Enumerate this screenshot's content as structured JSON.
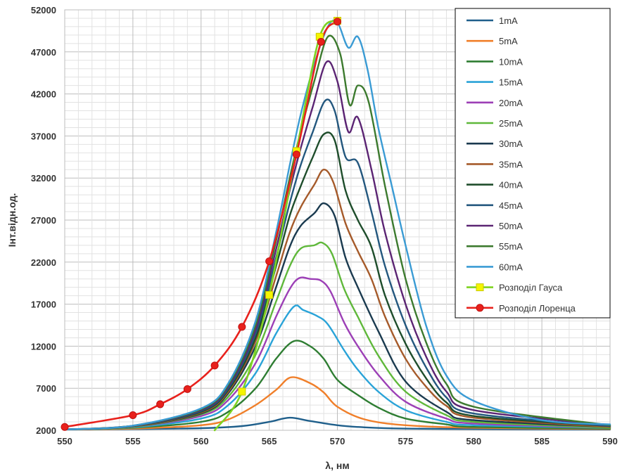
{
  "chart_data": {
    "type": "line",
    "title": "",
    "xlabel": "λ, нм",
    "ylabel": "Інт.відн.од.",
    "xlim": [
      550,
      590
    ],
    "ylim": [
      2000,
      52000
    ],
    "xticks": [
      "550",
      "555",
      "560",
      "565",
      "570",
      "575",
      "580",
      "585",
      "590"
    ],
    "yticks": [
      "2000",
      "7000",
      "12000",
      "17000",
      "22000",
      "27000",
      "32000",
      "37000",
      "42000",
      "47000",
      "52000"
    ],
    "grid": true,
    "legend_position": "top-right",
    "series": [
      {
        "name": "1mA",
        "color": "#1f5f8b",
        "marker": "none",
        "x": [
          550,
          555,
          560,
          563,
          565,
          566.5,
          568,
          570,
          572,
          575,
          580,
          590
        ],
        "y": [
          2100,
          2150,
          2250,
          2500,
          3000,
          3500,
          3100,
          2600,
          2350,
          2200,
          2150,
          2100
        ]
      },
      {
        "name": "5mA",
        "color": "#f07f2a",
        "marker": "none",
        "x": [
          550,
          555,
          560,
          562,
          564,
          565.5,
          566.6,
          568,
          569,
          570,
          572,
          575,
          580,
          590
        ],
        "y": [
          2100,
          2200,
          2600,
          3300,
          5000,
          6800,
          8300,
          7600,
          6500,
          4800,
          3300,
          2600,
          2300,
          2150
        ]
      },
      {
        "name": "10mA",
        "color": "#2e7d32",
        "marker": "none",
        "x": [
          550,
          555,
          560,
          562,
          564,
          565.5,
          566.8,
          568,
          569,
          570,
          571.5,
          573,
          575,
          578,
          580,
          590
        ],
        "y": [
          2100,
          2300,
          3000,
          4200,
          7000,
          10500,
          12600,
          12000,
          10500,
          8000,
          6200,
          4700,
          3400,
          2700,
          2400,
          2200
        ]
      },
      {
        "name": "15mA",
        "color": "#29a3d8",
        "marker": "none",
        "x": [
          550,
          555,
          560,
          562,
          564,
          565.5,
          566.8,
          567.5,
          568.5,
          569.3,
          570.5,
          571.5,
          573,
          575,
          578,
          580,
          590
        ],
        "y": [
          2100,
          2350,
          3400,
          5000,
          8800,
          13500,
          16700,
          16300,
          15600,
          14600,
          11500,
          9200,
          6600,
          4400,
          3000,
          2600,
          2300
        ]
      },
      {
        "name": "20mA",
        "color": "#9c3fb6",
        "marker": "none",
        "x": [
          550,
          555,
          560,
          562,
          564,
          565.5,
          566.5,
          567.2,
          568,
          568.8,
          569.5,
          570.5,
          571.5,
          573,
          575,
          578,
          580,
          590
        ],
        "y": [
          2100,
          2400,
          3700,
          5600,
          10000,
          15500,
          18800,
          20100,
          20000,
          19800,
          18500,
          14800,
          12000,
          8600,
          5400,
          3400,
          2800,
          2300
        ]
      },
      {
        "name": "25mA",
        "color": "#5fb83a",
        "marker": "none",
        "x": [
          550,
          555,
          560,
          562,
          564,
          565.5,
          566.5,
          567.3,
          568.3,
          568.9,
          569.6,
          570.5,
          571.5,
          573,
          575,
          578,
          580,
          590
        ],
        "y": [
          2100,
          2400,
          3900,
          6000,
          11000,
          17300,
          21500,
          23600,
          24000,
          24300,
          23000,
          18800,
          15500,
          10900,
          6600,
          3800,
          3000,
          2300
        ]
      },
      {
        "name": "30mA",
        "color": "#1a3a4f",
        "marker": "none",
        "x": [
          550,
          555,
          560,
          562,
          564,
          565.5,
          566.5,
          567.3,
          568.3,
          569,
          569.8,
          570.6,
          571.5,
          573,
          575,
          578,
          580,
          590
        ],
        "y": [
          2100,
          2450,
          4000,
          6400,
          12000,
          19000,
          23800,
          26300,
          27800,
          29000,
          27500,
          22500,
          19000,
          13800,
          7800,
          4200,
          3200,
          2400
        ]
      },
      {
        "name": "35mA",
        "color": "#a55a2a",
        "marker": "none",
        "x": [
          550,
          555,
          560,
          562,
          564,
          565.5,
          566.5,
          567.3,
          568.3,
          569,
          569.7,
          570.6,
          571.5,
          572.5,
          573.5,
          575,
          576.5,
          578,
          580,
          590
        ],
        "y": [
          2100,
          2450,
          4100,
          6600,
          12600,
          20300,
          25500,
          28500,
          31200,
          33000,
          31500,
          26600,
          23300,
          20000,
          15500,
          10500,
          7200,
          4900,
          3500,
          2400
        ]
      },
      {
        "name": "40mA",
        "color": "#1e4d2b",
        "marker": "none",
        "x": [
          550,
          555,
          560,
          562,
          564,
          565.5,
          566.5,
          567.3,
          568.2,
          569,
          569.8,
          570.6,
          571.5,
          572.5,
          573.5,
          575,
          576.5,
          578,
          580,
          590
        ],
        "y": [
          2100,
          2500,
          4200,
          6800,
          13000,
          21500,
          27500,
          31000,
          34500,
          37200,
          36500,
          30500,
          27000,
          23800,
          18000,
          12300,
          8200,
          5300,
          3700,
          2500
        ]
      },
      {
        "name": "45mA",
        "color": "#23577e",
        "marker": "none",
        "x": [
          550,
          555,
          560,
          562,
          564,
          565.5,
          566.5,
          567.3,
          568.2,
          569.1,
          569.8,
          570.6,
          571.5,
          572.5,
          573.5,
          575,
          576.5,
          578,
          580,
          590
        ],
        "y": [
          2100,
          2500,
          4300,
          7000,
          13500,
          22500,
          29000,
          33500,
          37500,
          41200,
          40000,
          34500,
          33800,
          28000,
          21500,
          14500,
          9500,
          5900,
          4000,
          2500
        ]
      },
      {
        "name": "50mA",
        "color": "#5b2473",
        "marker": "none",
        "x": [
          550,
          555,
          560,
          562,
          564,
          565.5,
          566.5,
          567.3,
          568.2,
          569.2,
          570,
          570.8,
          571.5,
          572.5,
          573.5,
          575,
          576.5,
          578,
          580,
          590
        ],
        "y": [
          2100,
          2550,
          4400,
          7200,
          14000,
          23500,
          30500,
          35500,
          40500,
          45800,
          43500,
          37500,
          39200,
          33000,
          25500,
          17000,
          10800,
          6600,
          4400,
          2600
        ]
      },
      {
        "name": "55mA",
        "color": "#3c7a2e",
        "marker": "none",
        "x": [
          550,
          555,
          560,
          562,
          564,
          565.5,
          566.5,
          567.3,
          568.3,
          569.3,
          570.2,
          570.9,
          571.5,
          572.3,
          573.5,
          575,
          576.5,
          578,
          580,
          590
        ],
        "y": [
          2100,
          2550,
          4500,
          7400,
          14500,
          24500,
          32000,
          37500,
          43500,
          48800,
          46800,
          40700,
          43000,
          41000,
          31000,
          20000,
          12500,
          7500,
          4800,
          2600
        ]
      },
      {
        "name": "60mA",
        "color": "#3a9bd4",
        "marker": "none",
        "x": [
          550,
          555,
          560,
          562,
          564,
          565.5,
          566.5,
          567.3,
          568.3,
          569.3,
          570,
          570.8,
          571.5,
          572.2,
          573,
          574,
          575,
          576.5,
          578,
          580,
          585,
          590
        ],
        "y": [
          2100,
          2550,
          4600,
          7600,
          15000,
          25500,
          33500,
          39500,
          45500,
          50000,
          50500,
          47500,
          48800,
          45000,
          38000,
          31000,
          24000,
          14500,
          8500,
          5500,
          3200,
          2700
        ]
      },
      {
        "name": "Розподіл Гауса",
        "color": "#7ed321",
        "marker": "square",
        "marker_color": "#f5f500",
        "x": [
          561,
          563,
          565,
          567,
          568.7,
          570
        ],
        "y": [
          2000,
          6600,
          18100,
          35200,
          48800,
          50700
        ],
        "markers_x": [
          563,
          565,
          567,
          568.7,
          570
        ],
        "markers_y": [
          6600,
          18100,
          35200,
          48800,
          50700
        ]
      },
      {
        "name": "Розподіл Лоренца",
        "color": "#e8211c",
        "marker": "circle",
        "marker_color": "#e8211c",
        "x": [
          550,
          555,
          557,
          559,
          561,
          563,
          565,
          567,
          568.8,
          570
        ],
        "y": [
          2400,
          3800,
          5100,
          6900,
          9700,
          14300,
          22100,
          34800,
          48200,
          50600
        ],
        "markers_x": [
          550,
          555,
          557,
          559,
          561,
          563,
          565,
          567,
          568.8,
          570
        ],
        "markers_y": [
          2400,
          3800,
          5100,
          6900,
          9700,
          14300,
          22100,
          34800,
          48200,
          50600
        ]
      }
    ]
  }
}
